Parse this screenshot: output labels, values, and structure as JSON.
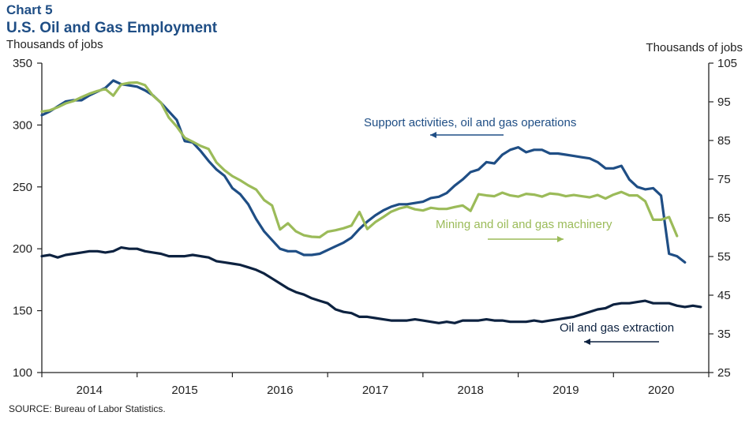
{
  "header": {
    "title": "Chart 5",
    "subtitle": "U.S. Oil and Gas Employment",
    "left_axis_label": "Thousands  of jobs",
    "right_axis_label": "Thousands  of jobs"
  },
  "footer": {
    "source": "SOURCE: Bureau of Labor Statistics."
  },
  "colors": {
    "support": "#1f4e85",
    "machinery": "#9bbb59",
    "extraction": "#0d2240",
    "axis": "#222222"
  },
  "chart_data": {
    "type": "line",
    "title": "U.S. Oil and Gas Employment",
    "xlabel": "",
    "ylabel": "Thousands of jobs",
    "y2label": "Thousands of jobs",
    "ylim": [
      100,
      350
    ],
    "y2lim": [
      25,
      105
    ],
    "yticks": [
      100,
      150,
      200,
      250,
      300,
      350
    ],
    "y2ticks": [
      25,
      35,
      45,
      55,
      65,
      75,
      85,
      95,
      105
    ],
    "xtick_labels": [
      "2014",
      "2015",
      "2016",
      "2017",
      "2018",
      "2019",
      "2020"
    ],
    "x_start": "2014-01",
    "frequency": "monthly",
    "grid": false,
    "series": [
      {
        "name": "Support activities, oil and gas operations",
        "axis": "left",
        "color_key": "support",
        "values": [
          308,
          311,
          315,
          319,
          320,
          320,
          324,
          327,
          330,
          336,
          333,
          332,
          331,
          328,
          324,
          318,
          311,
          304,
          287,
          286,
          279,
          271,
          264,
          259,
          249,
          244,
          236,
          224,
          214,
          207,
          200,
          198,
          198,
          195,
          195,
          196,
          199,
          202,
          205,
          209,
          216,
          222,
          227,
          231,
          234,
          236,
          236,
          237,
          238,
          241,
          242,
          245,
          251,
          256,
          262,
          264,
          270,
          269,
          276,
          280,
          282,
          278,
          280,
          280,
          277,
          277,
          276,
          275,
          274,
          273,
          270,
          265,
          265,
          267,
          256,
          250,
          248,
          249,
          243,
          196,
          194,
          189
        ]
      },
      {
        "name": "Mining and oil and gas machinery",
        "axis": "right",
        "color_key": "machinery",
        "values": [
          92.5,
          92.8,
          93.6,
          94.6,
          95.2,
          96.2,
          97.1,
          97.8,
          98.3,
          96.6,
          99.5,
          99.9,
          100.0,
          99.3,
          96.6,
          94.8,
          90.9,
          88.6,
          85.7,
          84.7,
          83.6,
          82.8,
          79.3,
          77.3,
          75.8,
          74.7,
          73.4,
          72.3,
          69.6,
          68.2,
          62.0,
          63.6,
          61.5,
          60.5,
          60.1,
          60.0,
          61.4,
          61.8,
          62.3,
          63.0,
          66.5,
          62.1,
          63.9,
          65.2,
          66.6,
          67.4,
          67.9,
          67.2,
          66.9,
          67.6,
          67.3,
          67.3,
          67.8,
          68.2,
          66.8,
          71.1,
          70.8,
          70.6,
          71.5,
          70.8,
          70.5,
          71.2,
          71.0,
          70.5,
          71.3,
          71.1,
          70.6,
          70.9,
          70.6,
          70.3,
          70.9,
          70.0,
          71.0,
          71.7,
          70.8,
          70.8,
          69.3,
          64.5,
          64.5,
          65.2,
          60.3
        ]
      },
      {
        "name": "Oil and gas extraction",
        "axis": "left",
        "color_key": "extraction",
        "values": [
          194,
          195,
          193,
          195,
          196,
          197,
          198,
          198,
          197,
          198,
          201,
          200,
          200,
          198,
          197,
          196,
          194,
          194,
          194,
          195,
          194,
          193,
          190,
          189,
          188,
          187,
          185,
          183,
          180,
          176,
          172,
          168,
          165,
          163,
          160,
          158,
          156,
          151,
          149,
          148,
          145,
          145,
          144,
          143,
          142,
          142,
          142,
          143,
          142,
          141,
          140,
          141,
          140,
          142,
          142,
          142,
          143,
          142,
          142,
          141,
          141,
          141,
          142,
          141,
          142,
          143,
          144,
          145,
          147,
          149,
          151,
          152,
          155,
          156,
          156,
          157,
          158,
          156,
          156,
          156,
          154,
          153,
          154,
          153
        ]
      }
    ],
    "annotations": [
      {
        "text": "Support activities, oil and gas operations",
        "series": "support",
        "arrow": "left"
      },
      {
        "text": "Mining and oil and gas machinery",
        "series": "machinery",
        "arrow": "right"
      },
      {
        "text": "Oil and gas extraction",
        "series": "extraction",
        "arrow": "left"
      }
    ]
  }
}
